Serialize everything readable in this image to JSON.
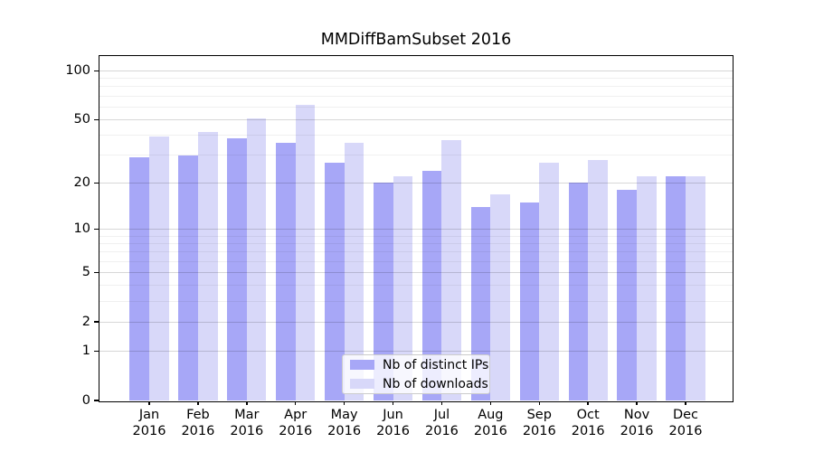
{
  "chart_data": {
    "type": "bar",
    "title": "MMDiffBamSubset 2016",
    "categories": [
      "Jan",
      "Feb",
      "Mar",
      "Apr",
      "May",
      "Jun",
      "Jul",
      "Aug",
      "Sep",
      "Oct",
      "Nov",
      "Dec"
    ],
    "x_tick_second_line": "2016",
    "series": [
      {
        "name": "Nb of distinct IPs",
        "color": "#a7a7f7",
        "values": [
          29,
          30,
          38,
          36,
          27,
          20,
          24,
          14,
          15,
          20,
          18,
          22
        ]
      },
      {
        "name": "Nb of downloads",
        "color": "#d8d8f9",
        "values": [
          39,
          42,
          51,
          62,
          36,
          22,
          37,
          17,
          27,
          28,
          22,
          22
        ]
      }
    ],
    "y_axis": {
      "scale": "log1p",
      "tick_values": [
        0,
        1,
        2,
        5,
        10,
        20,
        50,
        100
      ],
      "minor_gridline_values": [
        3,
        4,
        6,
        7,
        8,
        9,
        30,
        40,
        60,
        70,
        80,
        90
      ],
      "range": [
        0,
        122
      ]
    },
    "xlabel": "",
    "ylabel": "",
    "grid": true,
    "legend": {
      "position": "lower-center",
      "entries": [
        "Nb of distinct IPs",
        "Nb of downloads"
      ]
    }
  }
}
